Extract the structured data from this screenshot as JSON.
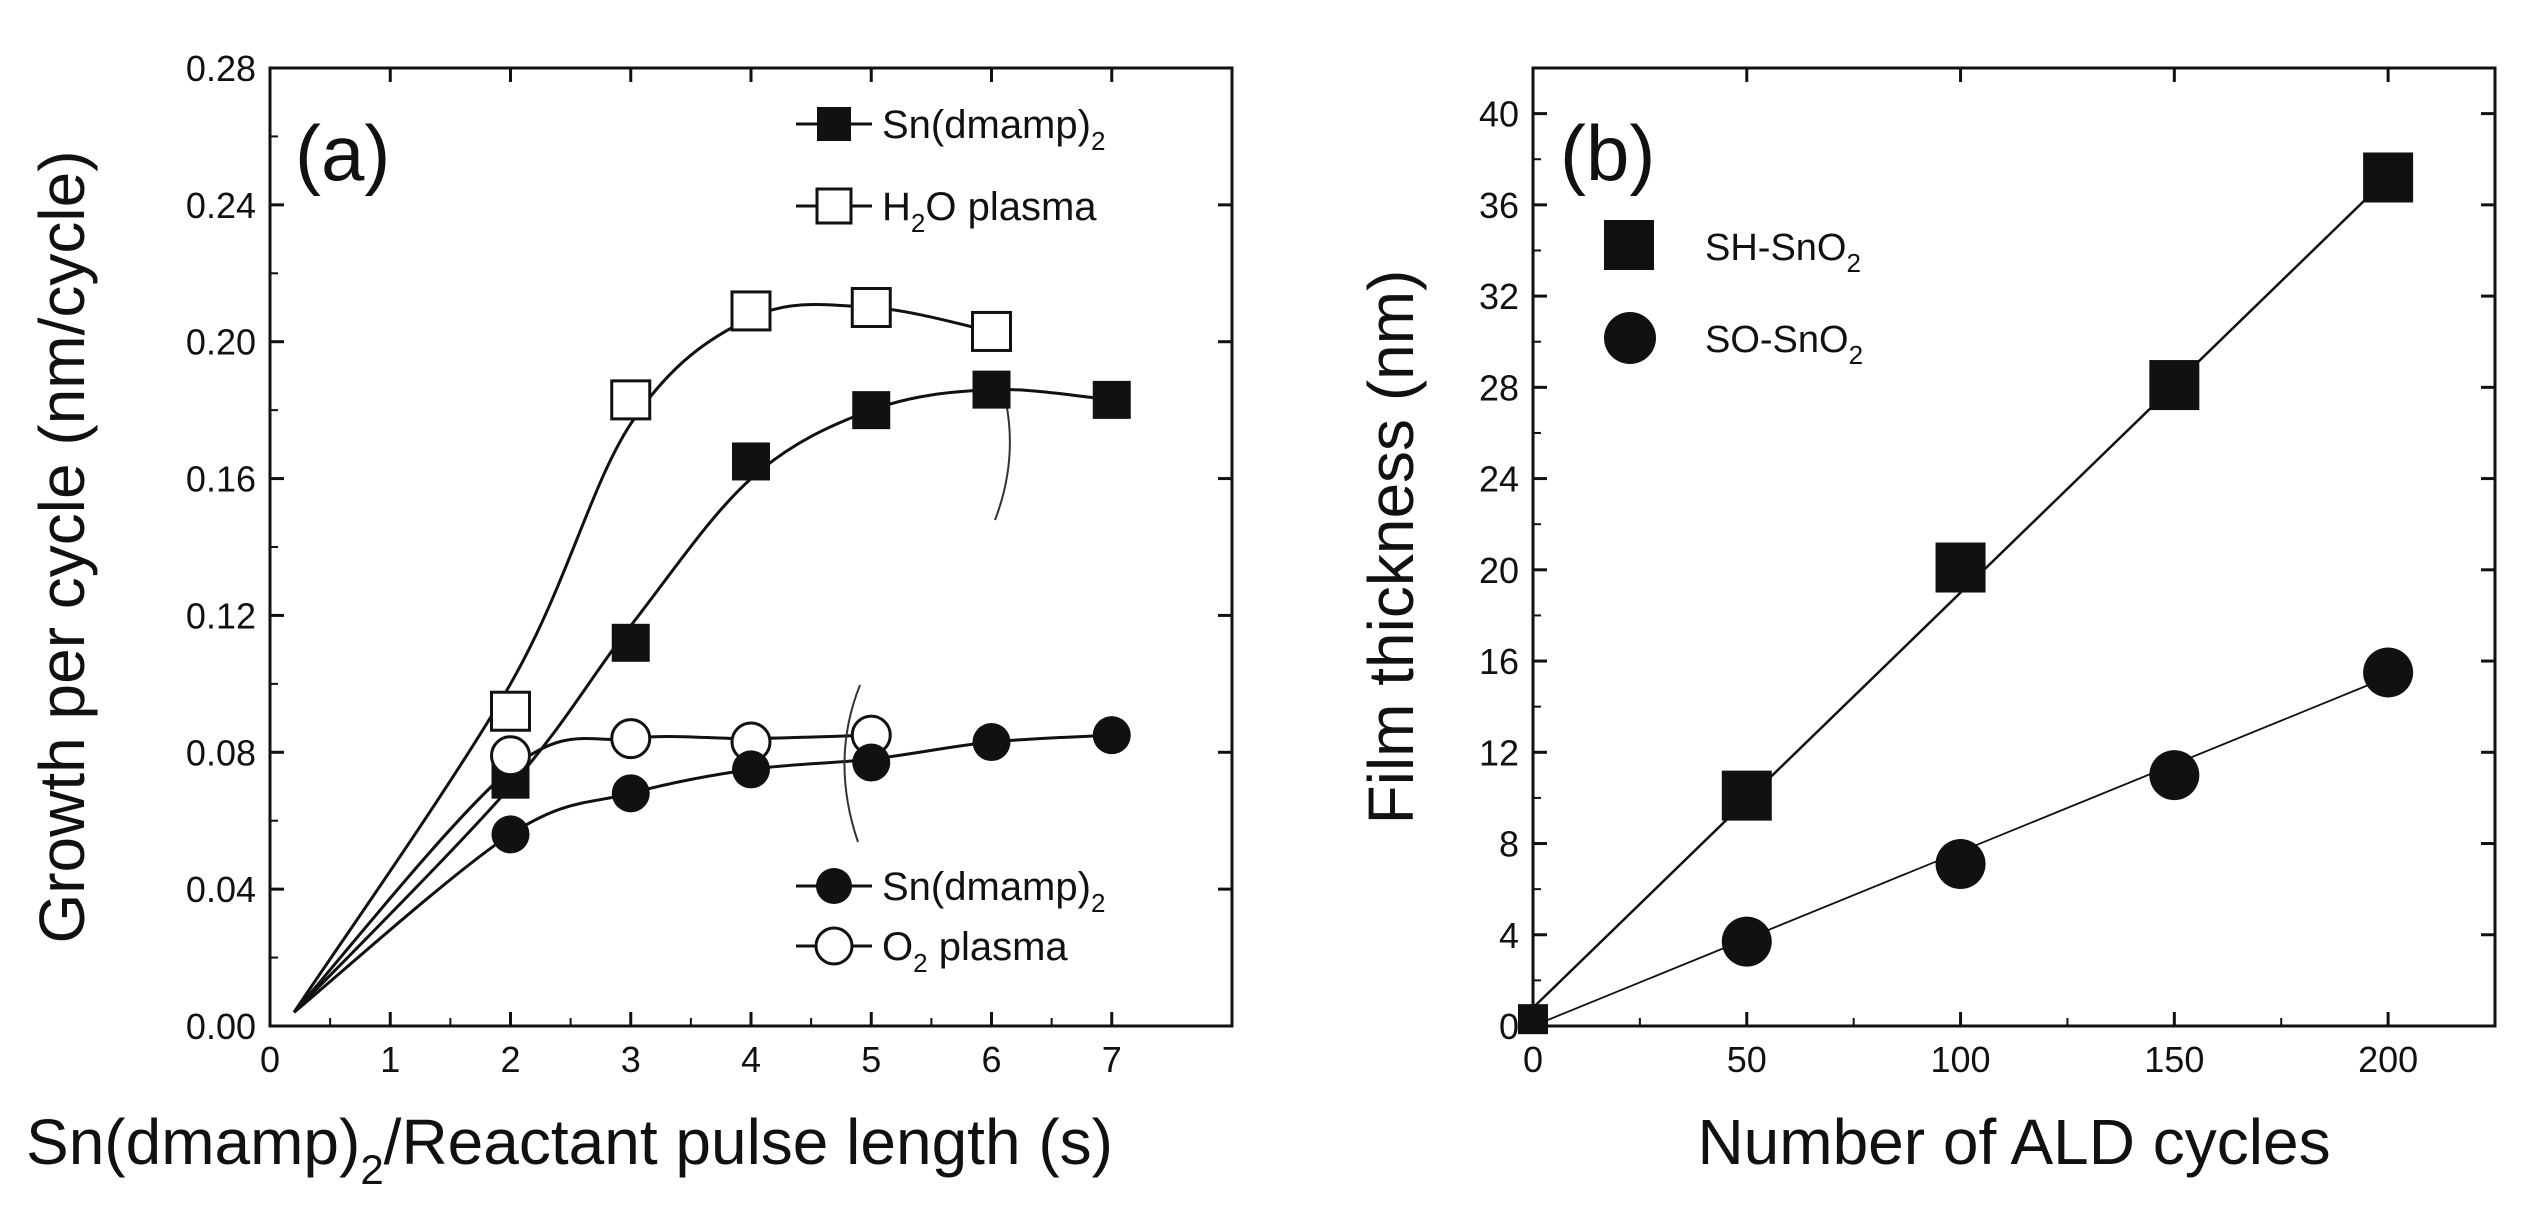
{
  "chart_data": [
    {
      "panel": "(a)",
      "type": "scatter",
      "xlabel": "Sn(dmamp)",
      "xlabel_sub": "2",
      "xlabel_rest": "/Reactant pulse length (s)",
      "ylabel": "Growth per cycle (nm/cycle)",
      "xlim": [
        0,
        8
      ],
      "ylim": [
        0,
        0.28
      ],
      "xticks": [
        "0",
        "1",
        "2",
        "3",
        "4",
        "5",
        "6",
        "7"
      ],
      "yticks": [
        "0.00",
        "0.04",
        "0.08",
        "0.12",
        "0.16",
        "0.20",
        "0.24",
        "0.28"
      ],
      "legend_top": [
        {
          "label": "Sn(dmamp)",
          "sub": "2",
          "marker": "filled-square"
        },
        {
          "label": "H",
          "sub": "2",
          "rest": "O plasma",
          "marker": "open-square"
        }
      ],
      "legend_bottom": [
        {
          "label": "Sn(dmamp)",
          "sub": "2",
          "marker": "filled-circle"
        },
        {
          "label": "O",
          "sub": "2",
          "rest": " plasma",
          "marker": "open-circle"
        }
      ],
      "series": [
        {
          "name": "H2O plasma pulse (open square)",
          "marker": "open-square",
          "points": [
            [
              2,
              0.092
            ],
            [
              3,
              0.183
            ],
            [
              4,
              0.209
            ],
            [
              5,
              0.21
            ],
            [
              6,
              0.203
            ]
          ],
          "curve": [
            [
              0.2,
              0.004
            ],
            [
              2,
              0.1
            ],
            [
              3,
              0.176
            ],
            [
              4,
              0.207
            ],
            [
              5,
              0.21
            ],
            [
              6,
              0.203
            ]
          ]
        },
        {
          "name": "Sn(dmamp)2 pulse, H2O plasma (filled square)",
          "marker": "filled-square",
          "points": [
            [
              2,
              0.072
            ],
            [
              3,
              0.112
            ],
            [
              4,
              0.165
            ],
            [
              5,
              0.18
            ],
            [
              6,
              0.186
            ],
            [
              7,
              0.183
            ]
          ],
          "curve": [
            [
              0.2,
              0.004
            ],
            [
              2,
              0.07
            ],
            [
              3,
              0.117
            ],
            [
              4,
              0.16
            ],
            [
              5,
              0.18
            ],
            [
              6,
              0.186
            ],
            [
              7,
              0.183
            ]
          ]
        },
        {
          "name": "O2 plasma pulse (open circle)",
          "marker": "open-circle",
          "points": [
            [
              2,
              0.079
            ],
            [
              3,
              0.084
            ],
            [
              4,
              0.083
            ],
            [
              5,
              0.085
            ]
          ],
          "curve": [
            [
              0.2,
              0.004
            ],
            [
              2,
              0.075
            ],
            [
              3,
              0.084
            ],
            [
              4,
              0.084
            ],
            [
              5,
              0.085
            ]
          ]
        },
        {
          "name": "Sn(dmamp)2 pulse, O2 plasma (filled circle)",
          "marker": "filled-circle",
          "points": [
            [
              2,
              0.056
            ],
            [
              3,
              0.068
            ],
            [
              4,
              0.075
            ],
            [
              5,
              0.077
            ],
            [
              6,
              0.083
            ],
            [
              7,
              0.085
            ]
          ],
          "curve": [
            [
              0.2,
              0.004
            ],
            [
              2,
              0.056
            ],
            [
              3,
              0.068
            ],
            [
              4,
              0.075
            ],
            [
              5,
              0.078
            ],
            [
              6,
              0.083
            ],
            [
              7,
              0.085
            ]
          ]
        }
      ]
    },
    {
      "panel": "(b)",
      "type": "scatter",
      "xlabel": "Number of ALD cycles",
      "ylabel": "Film thickness (nm)",
      "xlim": [
        0,
        225
      ],
      "ylim": [
        0,
        42
      ],
      "xticks": [
        "0",
        "50",
        "100",
        "150",
        "200"
      ],
      "yticks": [
        "0",
        "4",
        "8",
        "12",
        "16",
        "20",
        "24",
        "28",
        "32",
        "36",
        "40"
      ],
      "legend": [
        {
          "label": "SH-SnO",
          "sub": "2",
          "marker": "filled-square"
        },
        {
          "label": "SO-SnO",
          "sub": "2",
          "marker": "filled-circle"
        }
      ],
      "series": [
        {
          "name": "SH-SnO2",
          "marker": "filled-square",
          "points": [
            [
              0,
              0.3
            ],
            [
              50,
              10.1
            ],
            [
              100,
              20.1
            ],
            [
              150,
              28.1
            ],
            [
              200,
              37.2
            ]
          ],
          "fit": [
            [
              0,
              0.8
            ],
            [
              200,
              37.2
            ]
          ]
        },
        {
          "name": "SO-SnO2",
          "marker": "filled-circle",
          "points": [
            [
              0,
              0.3
            ],
            [
              50,
              3.7
            ],
            [
              100,
              7.1
            ],
            [
              150,
              11.0
            ],
            [
              200,
              15.5
            ]
          ],
          "fit": [
            [
              0,
              0.0
            ],
            [
              200,
              15.3
            ]
          ]
        }
      ]
    }
  ]
}
